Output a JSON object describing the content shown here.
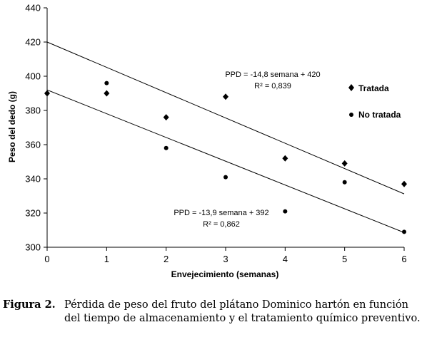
{
  "chart_data": {
    "type": "scatter",
    "xlabel": "Envejecimiento (semanas)",
    "ylabel": "Peso del dedo (g)",
    "xlim": [
      0,
      6
    ],
    "ylim": [
      300,
      440
    ],
    "xticks": [
      "0",
      "1",
      "2",
      "3",
      "4",
      "5",
      "6"
    ],
    "yticks": [
      "300",
      "320",
      "340",
      "360",
      "380",
      "400",
      "420",
      "440"
    ],
    "grid": false,
    "legend_position": "right",
    "series": [
      {
        "name": "Tratada",
        "marker": "diamond",
        "color": "#000000",
        "x": [
          0,
          1,
          2,
          3,
          4,
          5,
          6
        ],
        "y": [
          390,
          390,
          376,
          388,
          352,
          349,
          337
        ],
        "trendline": {
          "slope": -14.8,
          "intercept": 420
        },
        "equation": "PPD = -14,8 semana + 420",
        "r2": "R² = 0,839"
      },
      {
        "name": "No tratada",
        "marker": "circle",
        "color": "#000000",
        "x": [
          0,
          1,
          2,
          3,
          4,
          5,
          6
        ],
        "y": [
          390,
          396,
          358,
          341,
          321,
          338,
          309
        ],
        "trendline": {
          "slope": -13.9,
          "intercept": 392
        },
        "equation": "PPD = -13,9 semana + 392",
        "r2": "R² = 0,862"
      }
    ]
  },
  "caption": {
    "label": "Figura 2.",
    "text": "Pérdida de peso del fruto del plátano Dominico hartón en función del tiempo de almacenamiento y el tratamiento químico preventivo."
  }
}
